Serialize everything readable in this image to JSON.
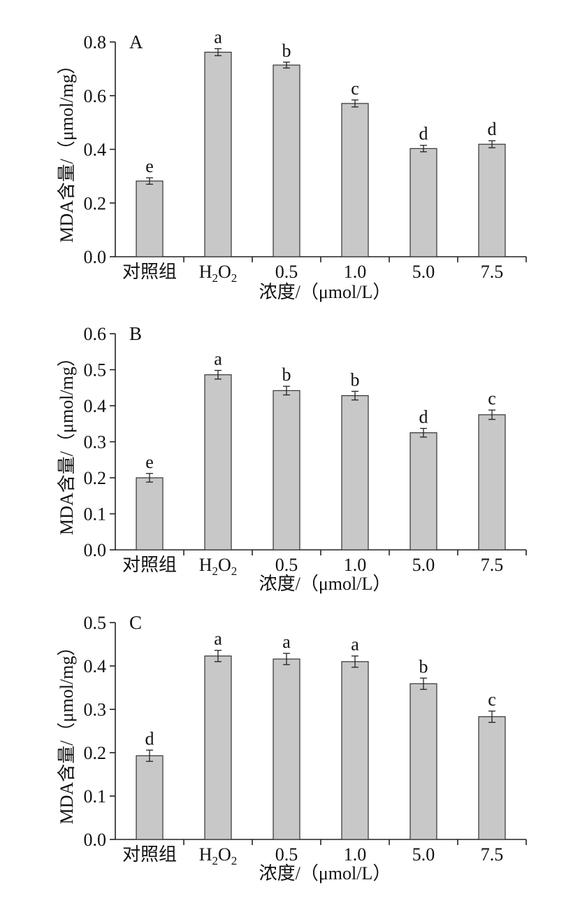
{
  "chart_data": [
    {
      "type": "bar",
      "panel_label": "A",
      "categories": [
        "对照组",
        "H2O2",
        "0.5",
        "1.0",
        "5.0",
        "7.5"
      ],
      "values": [
        0.282,
        0.762,
        0.714,
        0.571,
        0.403,
        0.419
      ],
      "errors": [
        0.012,
        0.013,
        0.011,
        0.013,
        0.012,
        0.013
      ],
      "significance": [
        "e",
        "a",
        "b",
        "c",
        "d",
        "d"
      ],
      "ylim": [
        0,
        0.8
      ],
      "yticks": [
        "0.0",
        "0.2",
        "0.4",
        "0.6",
        "0.8"
      ],
      "ylabel": "MDA含量/（μmol/mg）",
      "xlabel": "浓度/（μmol/L）",
      "bar_color": "#c8c8c8"
    },
    {
      "type": "bar",
      "panel_label": "B",
      "categories": [
        "对照组",
        "H2O2",
        "0.5",
        "1.0",
        "5.0",
        "7.5"
      ],
      "values": [
        0.2,
        0.486,
        0.442,
        0.428,
        0.325,
        0.375
      ],
      "errors": [
        0.012,
        0.012,
        0.012,
        0.012,
        0.012,
        0.013
      ],
      "significance": [
        "e",
        "a",
        "b",
        "b",
        "d",
        "c"
      ],
      "ylim": [
        0,
        0.6
      ],
      "yticks": [
        "0.0",
        "0.1",
        "0.2",
        "0.3",
        "0.4",
        "0.5",
        "0.6"
      ],
      "ylabel": "MDA含量/（μmol/mg）",
      "xlabel": "浓度/（μmol/L）",
      "bar_color": "#c8c8c8"
    },
    {
      "type": "bar",
      "panel_label": "C",
      "categories": [
        "对照组",
        "H2O2",
        "0.5",
        "1.0",
        "5.0",
        "7.5"
      ],
      "values": [
        0.193,
        0.423,
        0.416,
        0.41,
        0.359,
        0.283
      ],
      "errors": [
        0.013,
        0.013,
        0.013,
        0.013,
        0.013,
        0.013
      ],
      "significance": [
        "d",
        "a",
        "a",
        "a",
        "b",
        "c"
      ],
      "ylim": [
        0,
        0.5
      ],
      "yticks": [
        "0.0",
        "0.1",
        "0.2",
        "0.3",
        "0.4",
        "0.5"
      ],
      "ylabel": "MDA含量/（μmol/mg）",
      "xlabel": "浓度/（μmol/L）",
      "bar_color": "#c8c8c8"
    }
  ]
}
